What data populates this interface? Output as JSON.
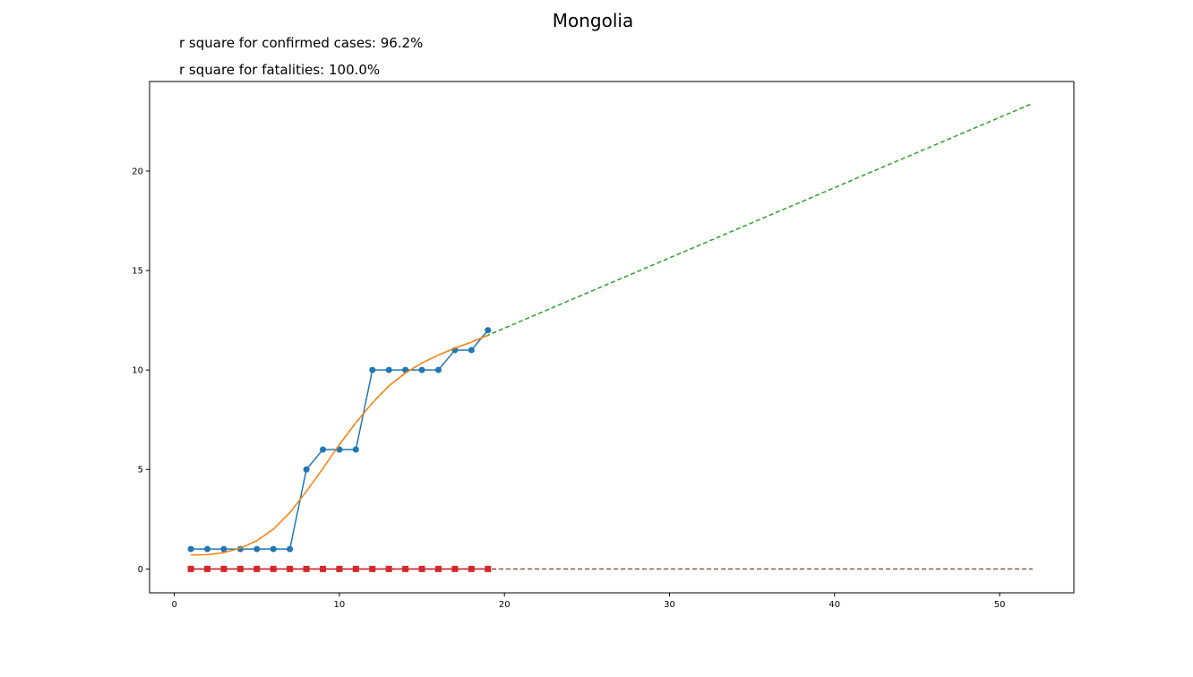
{
  "figure": {
    "title": "Mongolia",
    "annotations": [
      "r square for confirmed cases: 96.2%",
      "r square for fatalities: 100.0%"
    ]
  },
  "colors": {
    "confirmed": "#1f77b4",
    "confirmed_fit": "#ff7f0e",
    "confirmed_projection": "#2ca02c",
    "fatalities": "#d62728",
    "fatalities_fit": "#9467bd",
    "fatalities_projection": "#8c564b",
    "axis": "#000000"
  },
  "chart_data": {
    "type": "line",
    "title": "Mongolia",
    "xlabel": "",
    "ylabel": "",
    "xlim": [
      -1.5,
      54.5
    ],
    "ylim": [
      -1.2,
      24.5
    ],
    "xticks": [
      0,
      10,
      20,
      30,
      40,
      50
    ],
    "yticks": [
      0,
      5,
      10,
      15,
      20
    ],
    "grid": false,
    "legend": "none",
    "series": [
      {
        "key": "confirmed",
        "style": "line-marker-circle",
        "x": [
          1,
          2,
          3,
          4,
          5,
          6,
          7,
          8,
          9,
          10,
          11,
          12,
          13,
          14,
          15,
          16,
          17,
          18,
          19
        ],
        "y": [
          1,
          1,
          1,
          1,
          1,
          1,
          1,
          5,
          6,
          6,
          6,
          10,
          10,
          10,
          10,
          10,
          11,
          11,
          12
        ]
      },
      {
        "key": "confirmed_fit",
        "style": "line",
        "x": [
          1,
          2,
          3,
          4,
          5,
          6,
          7,
          8,
          9,
          10,
          11,
          12,
          13,
          14,
          15,
          16,
          17,
          18,
          19
        ],
        "y": [
          0.7,
          0.72,
          0.82,
          1.05,
          1.42,
          2.0,
          2.83,
          3.9,
          5.05,
          6.25,
          7.35,
          8.35,
          9.2,
          9.85,
          10.35,
          10.75,
          11.1,
          11.4,
          11.75
        ]
      },
      {
        "key": "confirmed_projection",
        "style": "dashed",
        "x": [
          10,
          11,
          12,
          13,
          14,
          15,
          16,
          17,
          18,
          19,
          52
        ],
        "y": [
          6.25,
          7.35,
          8.35,
          9.2,
          9.85,
          10.35,
          10.75,
          11.1,
          11.4,
          11.75,
          23.4
        ]
      },
      {
        "key": "fatalities",
        "style": "line-marker-square",
        "x": [
          1,
          2,
          3,
          4,
          5,
          6,
          7,
          8,
          9,
          10,
          11,
          12,
          13,
          14,
          15,
          16,
          17,
          18,
          19
        ],
        "y": [
          0,
          0,
          0,
          0,
          0,
          0,
          0,
          0,
          0,
          0,
          0,
          0,
          0,
          0,
          0,
          0,
          0,
          0,
          0
        ]
      },
      {
        "key": "fatalities_fit",
        "style": "line",
        "x": [
          1,
          19
        ],
        "y": [
          0,
          0
        ]
      },
      {
        "key": "fatalities_projection",
        "style": "dashed",
        "x": [
          1,
          52
        ],
        "y": [
          0,
          0
        ]
      }
    ]
  }
}
